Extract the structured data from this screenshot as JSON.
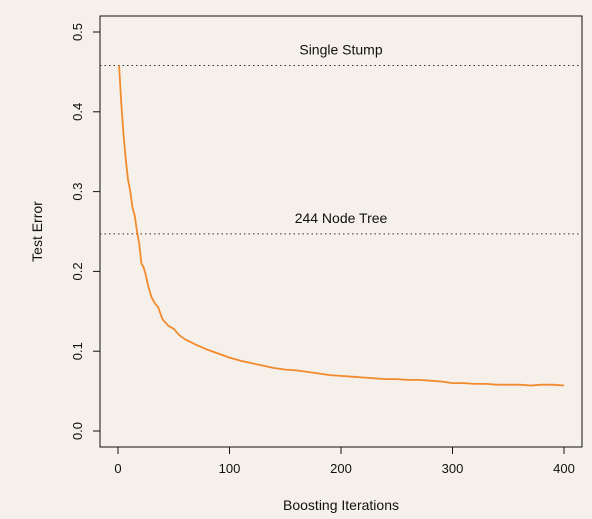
{
  "chart_data": {
    "type": "line",
    "title": "",
    "xlabel": "Boosting Iterations",
    "ylabel": "Test Error",
    "xlim": [
      0,
      400
    ],
    "ylim": [
      0.0,
      0.5
    ],
    "xticks": [
      0,
      100,
      200,
      300,
      400
    ],
    "yticks": [
      0.0,
      0.1,
      0.2,
      0.3,
      0.4,
      0.5
    ],
    "xtick_labels": [
      "0",
      "100",
      "200",
      "300",
      "400"
    ],
    "ytick_labels": [
      "0.0",
      "0.1",
      "0.2",
      "0.3",
      "0.4",
      "0.5"
    ],
    "grid": false,
    "line_color": "#f28a2e",
    "reference_lines": [
      {
        "label": "Single Stump",
        "y": 0.458,
        "style": "dotted"
      },
      {
        "label": "244 Node Tree",
        "y": 0.247,
        "style": "dotted"
      }
    ],
    "series": [
      {
        "x": [
          1,
          3,
          5,
          7,
          9,
          11,
          13,
          15,
          17,
          19,
          21,
          23,
          25,
          27,
          30,
          33,
          36,
          40,
          45,
          50,
          55,
          60,
          70,
          80,
          90,
          100,
          110,
          120,
          130,
          140,
          150,
          160,
          170,
          180,
          190,
          200,
          210,
          220,
          230,
          240,
          250,
          260,
          270,
          280,
          290,
          300,
          310,
          320,
          330,
          340,
          350,
          360,
          370,
          380,
          390,
          400
        ],
        "y": [
          0.458,
          0.41,
          0.37,
          0.34,
          0.315,
          0.3,
          0.28,
          0.27,
          0.25,
          0.235,
          0.21,
          0.205,
          0.195,
          0.182,
          0.168,
          0.16,
          0.155,
          0.14,
          0.132,
          0.128,
          0.12,
          0.115,
          0.108,
          0.102,
          0.097,
          0.092,
          0.088,
          0.085,
          0.082,
          0.079,
          0.077,
          0.076,
          0.074,
          0.072,
          0.07,
          0.069,
          0.068,
          0.067,
          0.066,
          0.065,
          0.065,
          0.064,
          0.064,
          0.063,
          0.062,
          0.06,
          0.06,
          0.059,
          0.059,
          0.058,
          0.058,
          0.058,
          0.057,
          0.058,
          0.058,
          0.057
        ]
      }
    ]
  }
}
